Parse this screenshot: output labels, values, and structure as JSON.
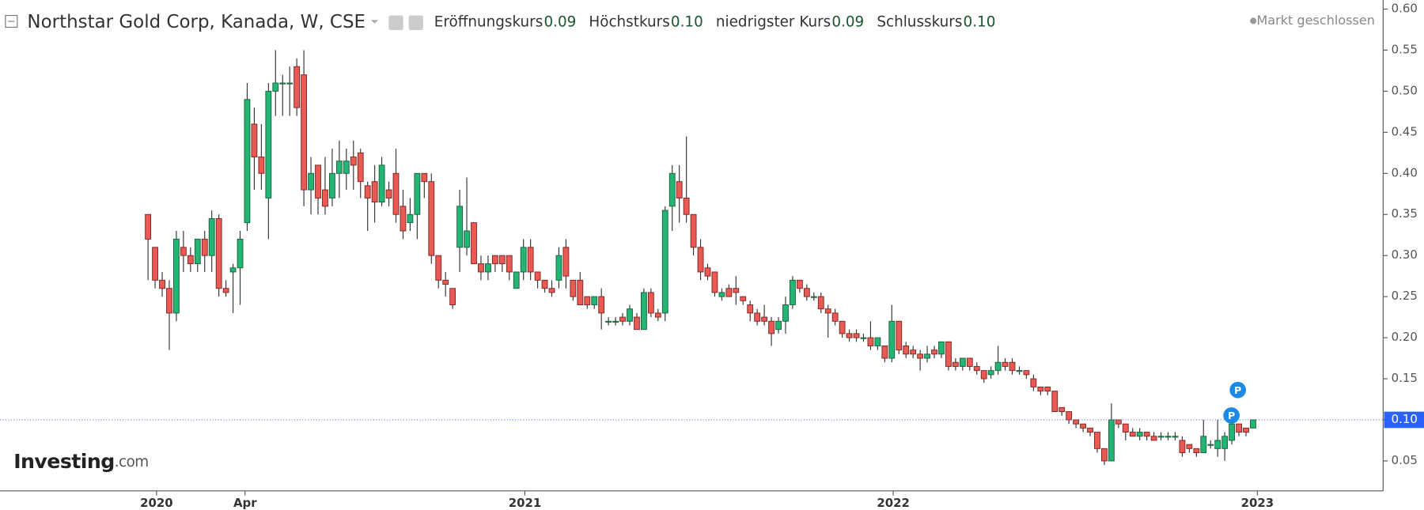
{
  "chart_data": {
    "type": "candlestick",
    "title": "Northstar Gold Corp, Kanada, W, CSE",
    "ohlc_header": [
      {
        "name": "Eröffnungskurs",
        "value": "0.09"
      },
      {
        "name": "Höchstkurs",
        "value": "0.10"
      },
      {
        "name": "niedrigster Kurs",
        "value": "0.09"
      },
      {
        "name": "Schlusskurs",
        "value": "0.10"
      }
    ],
    "status": "Markt geschlossen",
    "logo": [
      "Investing",
      ".com"
    ],
    "annotations": [
      "P",
      "P"
    ],
    "up_color": "#22b573",
    "down_color": "#ea5a55",
    "values": [
      [
        0.35,
        0.35,
        0.27,
        0.32
      ],
      [
        0.31,
        0.31,
        0.26,
        0.27
      ],
      [
        0.27,
        0.28,
        0.25,
        0.26
      ],
      [
        0.26,
        0.27,
        0.185,
        0.23
      ],
      [
        0.23,
        0.33,
        0.22,
        0.32
      ],
      [
        0.31,
        0.33,
        0.28,
        0.3
      ],
      [
        0.3,
        0.31,
        0.28,
        0.29
      ],
      [
        0.29,
        0.32,
        0.28,
        0.32
      ],
      [
        0.32,
        0.33,
        0.28,
        0.3
      ],
      [
        0.3,
        0.355,
        0.28,
        0.345
      ],
      [
        0.345,
        0.35,
        0.25,
        0.26
      ],
      [
        0.26,
        0.27,
        0.25,
        0.255
      ],
      [
        0.28,
        0.29,
        0.23,
        0.285
      ],
      [
        0.285,
        0.33,
        0.24,
        0.32
      ],
      [
        0.34,
        0.51,
        0.33,
        0.49
      ],
      [
        0.46,
        0.48,
        0.38,
        0.42
      ],
      [
        0.42,
        0.46,
        0.38,
        0.4
      ],
      [
        0.37,
        0.51,
        0.32,
        0.5
      ],
      [
        0.5,
        0.55,
        0.47,
        0.51
      ],
      [
        0.51,
        0.52,
        0.47,
        0.51
      ],
      [
        0.51,
        0.53,
        0.47,
        0.51
      ],
      [
        0.53,
        0.54,
        0.47,
        0.48
      ],
      [
        0.52,
        0.55,
        0.36,
        0.38
      ],
      [
        0.38,
        0.42,
        0.35,
        0.4
      ],
      [
        0.41,
        0.41,
        0.35,
        0.37
      ],
      [
        0.38,
        0.42,
        0.35,
        0.36
      ],
      [
        0.37,
        0.43,
        0.36,
        0.4
      ],
      [
        0.4,
        0.44,
        0.37,
        0.415
      ],
      [
        0.4,
        0.43,
        0.38,
        0.415
      ],
      [
        0.42,
        0.44,
        0.38,
        0.41
      ],
      [
        0.425,
        0.43,
        0.37,
        0.39
      ],
      [
        0.385,
        0.39,
        0.33,
        0.37
      ],
      [
        0.39,
        0.41,
        0.34,
        0.365
      ],
      [
        0.365,
        0.42,
        0.36,
        0.41
      ],
      [
        0.38,
        0.39,
        0.36,
        0.37
      ],
      [
        0.4,
        0.43,
        0.34,
        0.35
      ],
      [
        0.36,
        0.38,
        0.32,
        0.33
      ],
      [
        0.34,
        0.37,
        0.33,
        0.35
      ],
      [
        0.35,
        0.4,
        0.32,
        0.4
      ],
      [
        0.4,
        0.4,
        0.37,
        0.39
      ],
      [
        0.39,
        0.4,
        0.29,
        0.3
      ],
      [
        0.3,
        0.3,
        0.26,
        0.27
      ],
      [
        0.27,
        0.28,
        0.25,
        0.265
      ],
      [
        0.26,
        0.26,
        0.235,
        0.24
      ],
      [
        0.31,
        0.38,
        0.28,
        0.36
      ],
      [
        0.31,
        0.395,
        0.3,
        0.33
      ],
      [
        0.34,
        0.34,
        0.29,
        0.29
      ],
      [
        0.29,
        0.3,
        0.27,
        0.28
      ],
      [
        0.28,
        0.3,
        0.27,
        0.29
      ],
      [
        0.3,
        0.3,
        0.28,
        0.29
      ],
      [
        0.3,
        0.3,
        0.28,
        0.29
      ],
      [
        0.3,
        0.3,
        0.27,
        0.28
      ],
      [
        0.26,
        0.28,
        0.26,
        0.28
      ],
      [
        0.28,
        0.32,
        0.27,
        0.31
      ],
      [
        0.31,
        0.32,
        0.27,
        0.28
      ],
      [
        0.28,
        0.28,
        0.26,
        0.27
      ],
      [
        0.27,
        0.27,
        0.255,
        0.26
      ],
      [
        0.26,
        0.27,
        0.25,
        0.255
      ],
      [
        0.27,
        0.31,
        0.26,
        0.3
      ],
      [
        0.31,
        0.32,
        0.26,
        0.275
      ],
      [
        0.27,
        0.27,
        0.245,
        0.25
      ],
      [
        0.27,
        0.28,
        0.24,
        0.24
      ],
      [
        0.25,
        0.25,
        0.235,
        0.24
      ],
      [
        0.24,
        0.25,
        0.235,
        0.25
      ],
      [
        0.25,
        0.26,
        0.21,
        0.23
      ],
      [
        0.22,
        0.225,
        0.215,
        0.22
      ],
      [
        0.22,
        0.225,
        0.215,
        0.22
      ],
      [
        0.225,
        0.23,
        0.215,
        0.22
      ],
      [
        0.22,
        0.24,
        0.215,
        0.235
      ],
      [
        0.225,
        0.23,
        0.21,
        0.21
      ],
      [
        0.21,
        0.26,
        0.21,
        0.255
      ],
      [
        0.255,
        0.26,
        0.225,
        0.23
      ],
      [
        0.23,
        0.235,
        0.22,
        0.225
      ],
      [
        0.23,
        0.36,
        0.22,
        0.355
      ],
      [
        0.36,
        0.41,
        0.33,
        0.4
      ],
      [
        0.39,
        0.41,
        0.34,
        0.37
      ],
      [
        0.37,
        0.445,
        0.34,
        0.35
      ],
      [
        0.35,
        0.35,
        0.3,
        0.31
      ],
      [
        0.31,
        0.32,
        0.27,
        0.28
      ],
      [
        0.285,
        0.29,
        0.27,
        0.275
      ],
      [
        0.28,
        0.28,
        0.25,
        0.255
      ],
      [
        0.25,
        0.26,
        0.245,
        0.255
      ],
      [
        0.26,
        0.265,
        0.25,
        0.25
      ],
      [
        0.26,
        0.275,
        0.24,
        0.255
      ],
      [
        0.25,
        0.25,
        0.24,
        0.245
      ],
      [
        0.24,
        0.245,
        0.22,
        0.23
      ],
      [
        0.23,
        0.235,
        0.215,
        0.22
      ],
      [
        0.225,
        0.24,
        0.215,
        0.22
      ],
      [
        0.22,
        0.225,
        0.19,
        0.205
      ],
      [
        0.21,
        0.225,
        0.205,
        0.22
      ],
      [
        0.22,
        0.25,
        0.205,
        0.24
      ],
      [
        0.24,
        0.275,
        0.235,
        0.27
      ],
      [
        0.27,
        0.27,
        0.255,
        0.26
      ],
      [
        0.26,
        0.265,
        0.245,
        0.25
      ],
      [
        0.25,
        0.255,
        0.245,
        0.25
      ],
      [
        0.25,
        0.255,
        0.23,
        0.235
      ],
      [
        0.235,
        0.24,
        0.2,
        0.23
      ],
      [
        0.23,
        0.235,
        0.215,
        0.22
      ],
      [
        0.22,
        0.22,
        0.2,
        0.205
      ],
      [
        0.205,
        0.21,
        0.195,
        0.2
      ],
      [
        0.205,
        0.21,
        0.195,
        0.2
      ],
      [
        0.2,
        0.205,
        0.195,
        0.2
      ],
      [
        0.2,
        0.22,
        0.185,
        0.19
      ],
      [
        0.19,
        0.2,
        0.185,
        0.2
      ],
      [
        0.19,
        0.19,
        0.17,
        0.175
      ],
      [
        0.175,
        0.24,
        0.17,
        0.22
      ],
      [
        0.22,
        0.22,
        0.18,
        0.185
      ],
      [
        0.19,
        0.195,
        0.175,
        0.18
      ],
      [
        0.185,
        0.19,
        0.175,
        0.18
      ],
      [
        0.18,
        0.185,
        0.16,
        0.175
      ],
      [
        0.175,
        0.19,
        0.17,
        0.18
      ],
      [
        0.185,
        0.19,
        0.175,
        0.18
      ],
      [
        0.18,
        0.195,
        0.175,
        0.195
      ],
      [
        0.195,
        0.195,
        0.16,
        0.165
      ],
      [
        0.17,
        0.175,
        0.16,
        0.165
      ],
      [
        0.165,
        0.175,
        0.16,
        0.175
      ],
      [
        0.175,
        0.175,
        0.16,
        0.165
      ],
      [
        0.165,
        0.17,
        0.155,
        0.16
      ],
      [
        0.16,
        0.16,
        0.145,
        0.15
      ],
      [
        0.155,
        0.165,
        0.15,
        0.16
      ],
      [
        0.16,
        0.19,
        0.155,
        0.17
      ],
      [
        0.17,
        0.175,
        0.16,
        0.165
      ],
      [
        0.17,
        0.175,
        0.155,
        0.16
      ],
      [
        0.16,
        0.165,
        0.155,
        0.16
      ],
      [
        0.16,
        0.16,
        0.15,
        0.155
      ],
      [
        0.15,
        0.155,
        0.135,
        0.14
      ],
      [
        0.14,
        0.14,
        0.13,
        0.135
      ],
      [
        0.14,
        0.14,
        0.13,
        0.135
      ],
      [
        0.135,
        0.135,
        0.11,
        0.11
      ],
      [
        0.115,
        0.115,
        0.105,
        0.11
      ],
      [
        0.11,
        0.11,
        0.095,
        0.1
      ],
      [
        0.1,
        0.1,
        0.09,
        0.095
      ],
      [
        0.095,
        0.095,
        0.085,
        0.09
      ],
      [
        0.09,
        0.09,
        0.08,
        0.085
      ],
      [
        0.085,
        0.085,
        0.06,
        0.065
      ],
      [
        0.065,
        0.065,
        0.045,
        0.05
      ],
      [
        0.05,
        0.12,
        0.05,
        0.1
      ],
      [
        0.1,
        0.1,
        0.09,
        0.095
      ],
      [
        0.095,
        0.095,
        0.075,
        0.085
      ],
      [
        0.085,
        0.09,
        0.08,
        0.08
      ],
      [
        0.08,
        0.09,
        0.075,
        0.085
      ],
      [
        0.085,
        0.085,
        0.075,
        0.08
      ],
      [
        0.08,
        0.085,
        0.075,
        0.075
      ],
      [
        0.08,
        0.085,
        0.075,
        0.08
      ],
      [
        0.08,
        0.085,
        0.075,
        0.08
      ],
      [
        0.08,
        0.085,
        0.075,
        0.08
      ],
      [
        0.075,
        0.08,
        0.055,
        0.06
      ],
      [
        0.07,
        0.07,
        0.06,
        0.065
      ],
      [
        0.065,
        0.065,
        0.055,
        0.06
      ],
      [
        0.06,
        0.1,
        0.06,
        0.08
      ],
      [
        0.07,
        0.075,
        0.065,
        0.07
      ],
      [
        0.065,
        0.1,
        0.055,
        0.075
      ],
      [
        0.065,
        0.085,
        0.05,
        0.08
      ],
      [
        0.075,
        0.095,
        0.07,
        0.095
      ],
      [
        0.095,
        0.095,
        0.08,
        0.085
      ],
      [
        0.09,
        0.09,
        0.08,
        0.085
      ],
      [
        0.09,
        0.1,
        0.09,
        0.1
      ]
    ],
    "last_price": {
      "value": 0.1,
      "label": "0.10"
    },
    "ylim": [
      0.0,
      0.61
    ],
    "yticks": [
      {
        "value": 0.05,
        "label": "0.05"
      },
      {
        "value": 0.1,
        "label": "0.10"
      },
      {
        "value": 0.15,
        "label": "0.15"
      },
      {
        "value": 0.2,
        "label": "0.20"
      },
      {
        "value": 0.25,
        "label": "0.25"
      },
      {
        "value": 0.3,
        "label": "0.30"
      },
      {
        "value": 0.35,
        "label": "0.35"
      },
      {
        "value": 0.4,
        "label": "0.40"
      },
      {
        "value": 0.45,
        "label": "0.45"
      },
      {
        "value": 0.5,
        "label": "0.50"
      },
      {
        "value": 0.55,
        "label": "0.55"
      },
      {
        "value": 0.6,
        "label": "0.60"
      }
    ],
    "xticks": [
      {
        "value": 1.2,
        "label": "2020"
      },
      {
        "value": 13.7,
        "label": "Apr"
      },
      {
        "value": 53.2,
        "label": "2021"
      },
      {
        "value": 105.2,
        "label": "2022"
      },
      {
        "value": 156.6,
        "label": "2023"
      }
    ]
  }
}
